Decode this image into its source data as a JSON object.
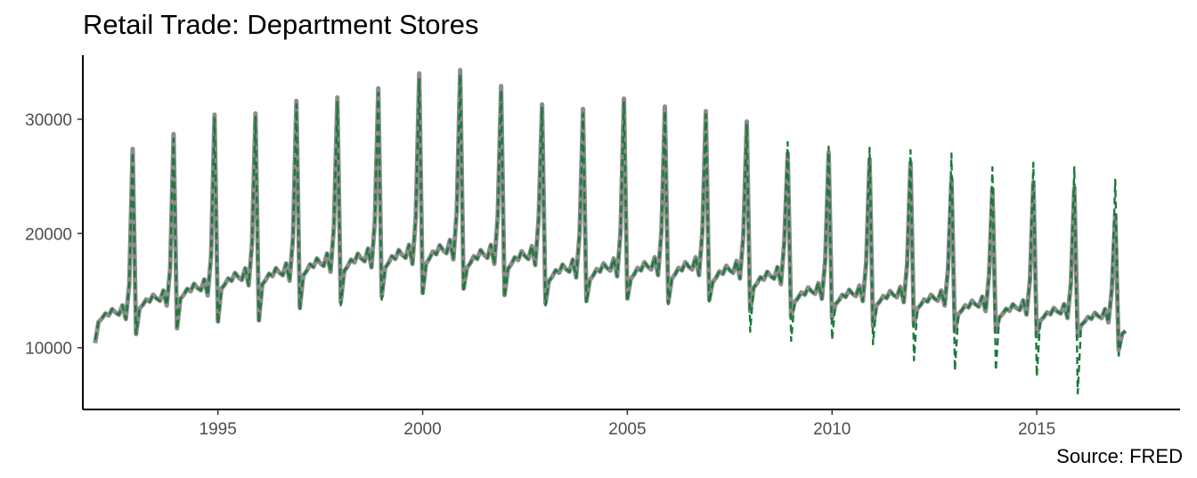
{
  "chart_data": {
    "type": "line",
    "title": "Retail Trade: Department Stores",
    "caption": "Source: FRED",
    "xlabel": "",
    "ylabel": "",
    "xlim": [
      1991.7,
      2018.5
    ],
    "ylim": [
      4600,
      35600
    ],
    "x_ticks": [
      1995,
      2000,
      2005,
      2010,
      2015
    ],
    "y_ticks": [
      10000,
      20000,
      30000
    ],
    "grid": false,
    "legend": "none",
    "start_year": 1992,
    "series": [
      {
        "style": "solid",
        "color": "#8c8c8c",
        "dec_peak": [
          27400,
          28700,
          30400,
          30500,
          31600,
          31900,
          32700,
          34000,
          34300,
          32900,
          31300,
          30900,
          31800,
          31100,
          30700,
          29800,
          27000,
          27100,
          26500,
          26200,
          24800,
          23900,
          24500,
          24000,
          21600
        ],
        "jan_low": [
          10400,
          11200,
          11700,
          12300,
          12400,
          13500,
          14000,
          14500,
          14800,
          15200,
          14600,
          13900,
          14100,
          14300,
          14000,
          14200,
          13200,
          12700,
          12600,
          11900,
          12000,
          11400,
          11400,
          11000,
          11000,
          9800
        ],
        "base_level": [
          12700,
          13900,
          14800,
          15700,
          16100,
          16900,
          17300,
          17600,
          18000,
          17600,
          17500,
          16400,
          16500,
          16600,
          16600,
          16300,
          15800,
          14500,
          14300,
          14200,
          13900,
          13400,
          13100,
          12800,
          12400,
          11600
        ]
      },
      {
        "style": "dashed",
        "color": "#1b7a3a",
        "dec_peak": [
          27100,
          28300,
          30100,
          30200,
          31300,
          31500,
          32300,
          33500,
          33900,
          32500,
          31000,
          30500,
          31500,
          30700,
          30400,
          29500,
          28000,
          27600,
          27500,
          27300,
          27000,
          25800,
          26200,
          25800,
          24700
        ],
        "jan_low": [
          10700,
          11200,
          11600,
          12100,
          12200,
          13300,
          13700,
          14200,
          14500,
          14900,
          14400,
          13700,
          13900,
          14100,
          13800,
          13900,
          11400,
          10600,
          10700,
          10300,
          8900,
          8000,
          8000,
          7500,
          6000,
          9300
        ],
        "base_level": [
          12700,
          13900,
          14800,
          15700,
          16100,
          16900,
          17300,
          17600,
          18000,
          17600,
          17500,
          16400,
          16500,
          16600,
          16600,
          16300,
          15800,
          14500,
          14300,
          14200,
          13900,
          13400,
          13100,
          12800,
          12400,
          11600
        ]
      }
    ]
  }
}
